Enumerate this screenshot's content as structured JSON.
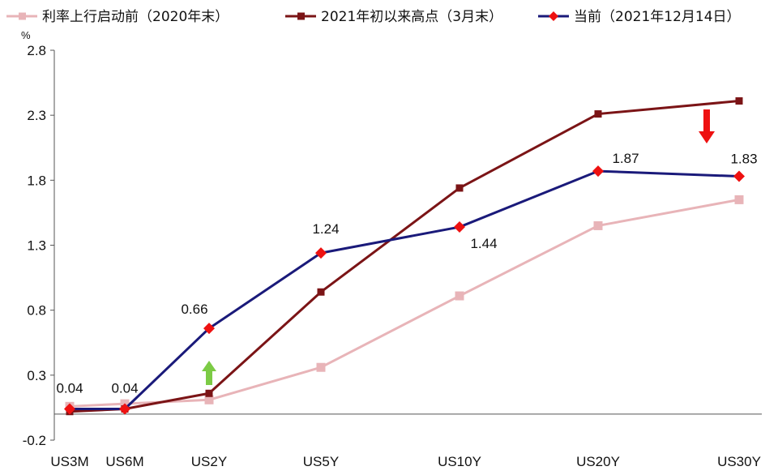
{
  "chart_data": {
    "type": "line",
    "title": "",
    "unit": "%",
    "categories": [
      "US3M",
      "US6M",
      "US2Y",
      "US5Y",
      "US10Y",
      "US20Y",
      "US30Y"
    ],
    "ylim": [
      -0.2,
      2.8
    ],
    "yticks": [
      "2.8",
      "2.3",
      "1.8",
      "1.3",
      "0.8",
      "0.3",
      "-0.2"
    ],
    "legend_position": "top",
    "series": [
      {
        "name": "利率上行启动前（2020年末）",
        "color": "#e8b4b8",
        "marker": "square",
        "values": [
          0.06,
          0.08,
          0.11,
          0.36,
          0.91,
          1.45,
          1.65
        ]
      },
      {
        "name": "2021年初以来高点（3月末）",
        "color": "#7b1416",
        "marker": "square",
        "values": [
          0.02,
          0.04,
          0.16,
          0.94,
          1.74,
          2.31,
          2.41
        ]
      },
      {
        "name": "当前（2021年12月14日）",
        "color": "#1a1a7a",
        "marker": "diamond",
        "marker_color": "#ee1111",
        "values": [
          0.04,
          0.04,
          0.66,
          1.24,
          1.44,
          1.87,
          1.83
        ],
        "labels": [
          "0.04",
          "0.04",
          "0.66",
          "1.24",
          "1.44",
          "1.87",
          "1.83"
        ]
      }
    ],
    "annotations": [
      {
        "kind": "arrow-up",
        "category": "US2Y",
        "color": "#7ccb45"
      },
      {
        "kind": "arrow-down",
        "category": "US30Y",
        "color": "#ee1111"
      }
    ]
  }
}
